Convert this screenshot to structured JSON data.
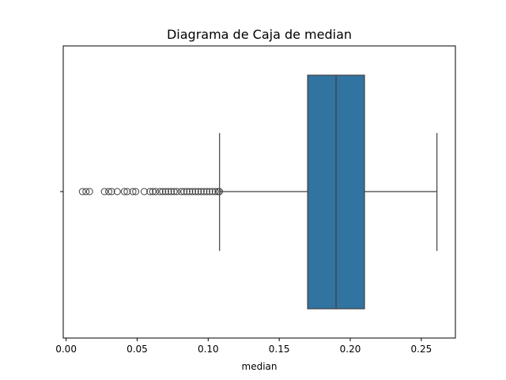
{
  "chart_data": {
    "type": "box",
    "title": "Diagrama de Caja de median",
    "xlabel": "median",
    "ylabel": "",
    "xlim": [
      -0.002,
      0.274
    ],
    "xticks": [
      0.0,
      0.05,
      0.1,
      0.15,
      0.2,
      0.25
    ],
    "xtick_labels": [
      "0.00",
      "0.05",
      "0.10",
      "0.15",
      "0.20",
      "0.25"
    ],
    "box": {
      "whisker_low": 0.108,
      "q1": 0.17,
      "median": 0.19,
      "q3": 0.21,
      "whisker_high": 0.261
    },
    "outliers": [
      0.0115,
      0.014,
      0.0165,
      0.027,
      0.03,
      0.032,
      0.036,
      0.041,
      0.043,
      0.047,
      0.049,
      0.055,
      0.059,
      0.061,
      0.063,
      0.066,
      0.068,
      0.07,
      0.072,
      0.074,
      0.076,
      0.078,
      0.081,
      0.083,
      0.085,
      0.087,
      0.089,
      0.091,
      0.093,
      0.095,
      0.097,
      0.099,
      0.101,
      0.103,
      0.105,
      0.107,
      0.108
    ],
    "box_color": "#3274a1",
    "line_color": "#3f3f3f",
    "grid": false
  }
}
